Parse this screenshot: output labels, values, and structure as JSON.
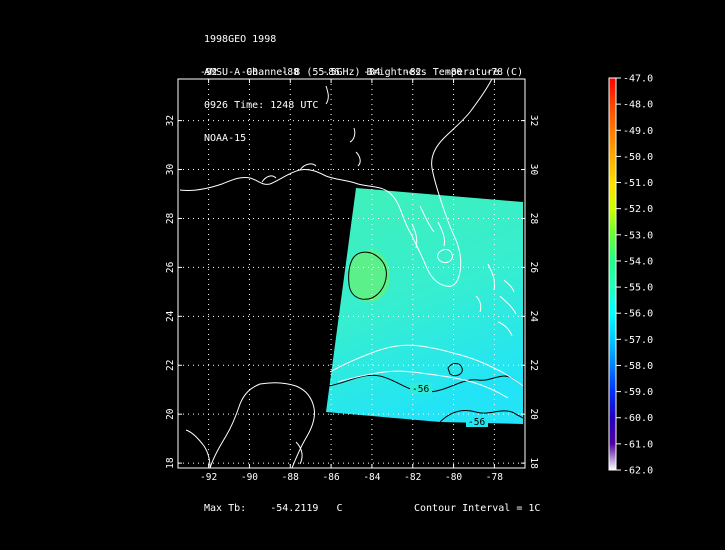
{
  "header": {
    "lines": [
      "1998GEO 1998",
      "AMSU-A Channel 8 (55.5GHz) Brightness Temperature (C)",
      "0926 Time: 1248 UTC",
      "NOAA-15"
    ]
  },
  "map": {
    "lon_range": [
      -93.5,
      -76.5
    ],
    "lat_range": [
      17.8,
      33.7
    ],
    "lon_ticks": [
      "-92",
      "-90",
      "-88",
      "-86",
      "-84",
      "-82",
      "-80",
      "-78"
    ],
    "lat_ticks": [
      "18",
      "20",
      "22",
      "24",
      "26",
      "28",
      "30",
      "32"
    ],
    "contour_labels": [
      "-56",
      "-56"
    ]
  },
  "colorbar": {
    "labels": [
      "-47.0",
      "-48.0",
      "-49.0",
      "-50.0",
      "-51.0",
      "-52.0",
      "-53.0",
      "-54.0",
      "-55.0",
      "-56.0",
      "-57.0",
      "-58.0",
      "-59.0",
      "-60.0",
      "-61.0",
      "-62.0"
    ],
    "stops": [
      "#ff0000",
      "#ff4400",
      "#ff7700",
      "#ffaa00",
      "#ffdd00",
      "#ccff00",
      "#66ff33",
      "#22ff88",
      "#22ffbb",
      "#00ffff",
      "#00c8ff",
      "#0080ff",
      "#0030ff",
      "#2000c0",
      "#5000a0",
      "#ffffff"
    ]
  },
  "footer": {
    "max_label": "Max Tb:",
    "max_value": "-54.2119",
    "max_unit": "C",
    "contour_interval": "Contour Interval = 1C"
  },
  "colors": {
    "swath_north": "#3ff0b8",
    "swath_south": "#2ce8f0",
    "warm_patch": "#5cf08a",
    "coastline": "#ffffff",
    "contour": "#000000"
  }
}
